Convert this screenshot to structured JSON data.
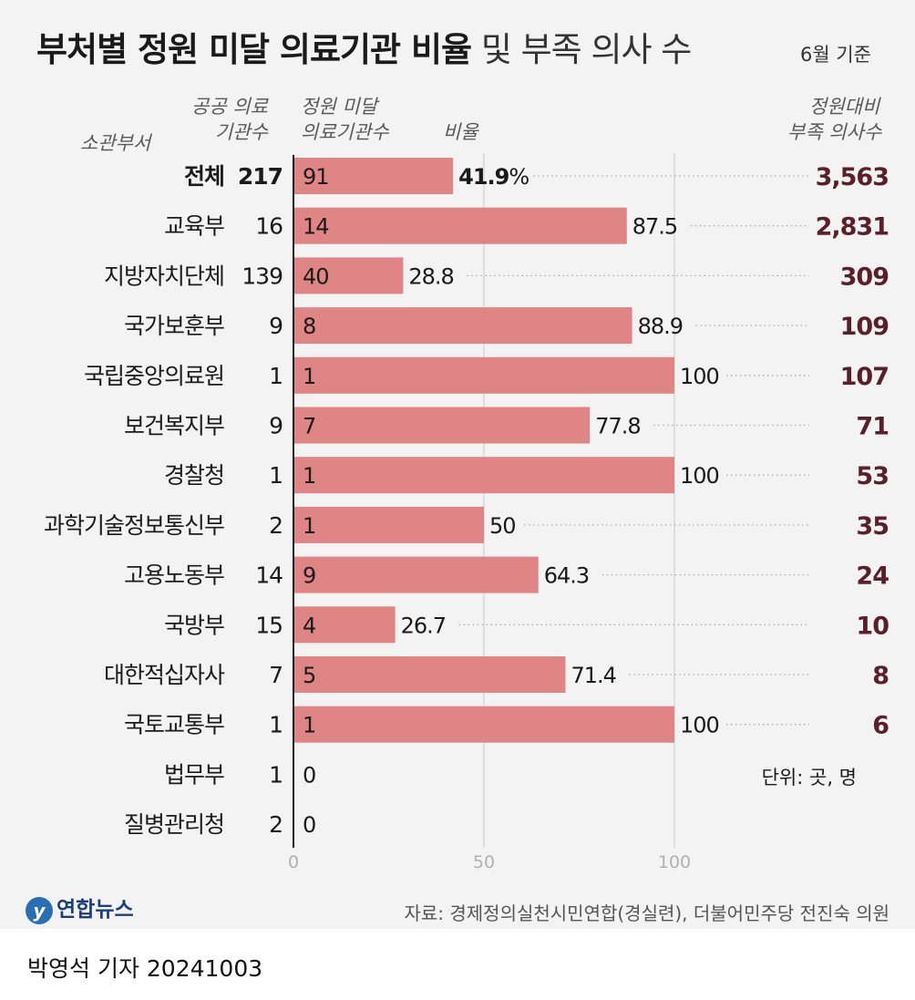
{
  "title": {
    "bold": "부처별 정원 미달 의료기관 비율",
    "light": "및 부족 의사 수",
    "basis": "6월 기준"
  },
  "headers": {
    "dept": "소관부서",
    "public_line1": "공공 의료",
    "public_line2": "기관수",
    "under_line1": "정원 미달",
    "under_line2": "의료기관수",
    "ratio": "비율",
    "shortage_line1": "정원대비",
    "shortage_line2": "부족 의사수"
  },
  "unit_note": "단위: 곳, 명",
  "source": "자료: 경제정의실천시민연합(경실련), 더불어민주당 전진숙 의원",
  "logo": "연합뉴스",
  "byline": "박영석 기자  20241003",
  "colors": {
    "bar": "#e08585",
    "shortage_text": "#5a1f2b"
  },
  "chart_data": {
    "type": "bar",
    "orientation": "horizontal",
    "xlim": [
      0,
      100
    ],
    "xticks": [
      "0",
      "50",
      "100"
    ],
    "rows": [
      {
        "dept": "전체",
        "public": "217",
        "under": "91",
        "ratio": 41.9,
        "ratio_label": "41.9",
        "ratio_suffix": "%",
        "shortage": "3,563",
        "total": true
      },
      {
        "dept": "교육부",
        "public": "16",
        "under": "14",
        "ratio": 87.5,
        "ratio_label": "87.5",
        "shortage": "2,831"
      },
      {
        "dept": "지방자치단체",
        "public": "139",
        "under": "40",
        "ratio": 28.8,
        "ratio_label": "28.8",
        "shortage": "309"
      },
      {
        "dept": "국가보훈부",
        "public": "9",
        "under": "8",
        "ratio": 88.9,
        "ratio_label": "88.9",
        "shortage": "109"
      },
      {
        "dept": "국립중앙의료원",
        "public": "1",
        "under": "1",
        "ratio": 100,
        "ratio_label": "100",
        "shortage": "107"
      },
      {
        "dept": "보건복지부",
        "public": "9",
        "under": "7",
        "ratio": 77.8,
        "ratio_label": "77.8",
        "shortage": "71"
      },
      {
        "dept": "경찰청",
        "public": "1",
        "under": "1",
        "ratio": 100,
        "ratio_label": "100",
        "shortage": "53"
      },
      {
        "dept": "과학기술정보통신부",
        "public": "2",
        "under": "1",
        "ratio": 50,
        "ratio_label": "50",
        "shortage": "35"
      },
      {
        "dept": "고용노동부",
        "public": "14",
        "under": "9",
        "ratio": 64.3,
        "ratio_label": "64.3",
        "shortage": "24"
      },
      {
        "dept": "국방부",
        "public": "15",
        "under": "4",
        "ratio": 26.7,
        "ratio_label": "26.7",
        "shortage": "10"
      },
      {
        "dept": "대한적십자사",
        "public": "7",
        "under": "5",
        "ratio": 71.4,
        "ratio_label": "71.4",
        "shortage": "8"
      },
      {
        "dept": "국토교통부",
        "public": "1",
        "under": "1",
        "ratio": 100,
        "ratio_label": "100",
        "shortage": "6"
      },
      {
        "dept": "법무부",
        "public": "1",
        "under": "0",
        "ratio": 0,
        "ratio_label": "",
        "shortage": ""
      },
      {
        "dept": "질병관리청",
        "public": "2",
        "under": "0",
        "ratio": 0,
        "ratio_label": "",
        "shortage": ""
      }
    ]
  }
}
